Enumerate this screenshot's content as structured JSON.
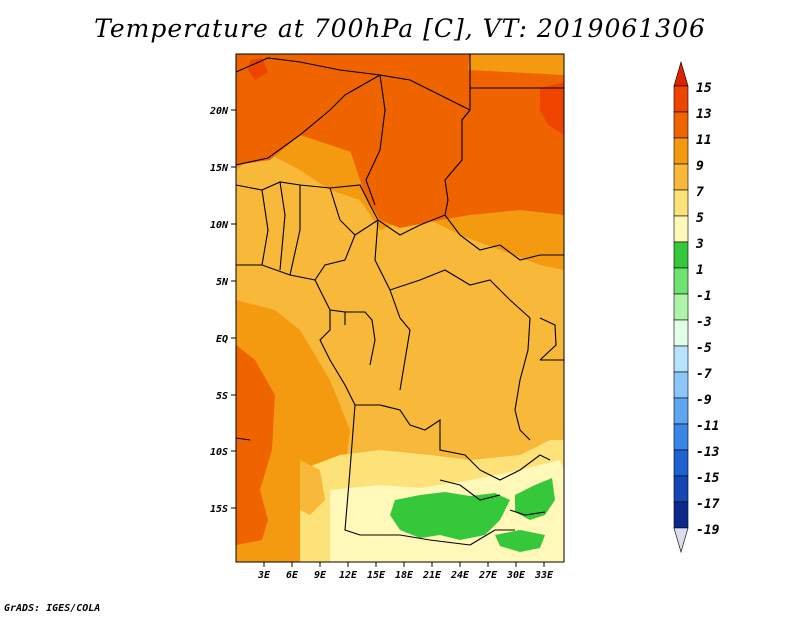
{
  "title": "Temperature at 700hPa [C], VT: 2019061306",
  "credit": "GrADS: IGES/COLA",
  "map": {
    "lat_labels": [
      "20N",
      "15N",
      "10N",
      "5N",
      "EQ",
      "5S",
      "10S",
      "15S"
    ],
    "lon_labels": [
      "3E",
      "6E",
      "9E",
      "12E",
      "15E",
      "18E",
      "21E",
      "24E",
      "27E",
      "30E",
      "33E"
    ]
  },
  "colorbar": {
    "labels": [
      "15",
      "13",
      "11",
      "9",
      "7",
      "5",
      "3",
      "1",
      "-1",
      "-3",
      "-5",
      "-7",
      "-9",
      "-11",
      "-13",
      "-15",
      "-17",
      "-19"
    ],
    "colors": [
      "#dd2200",
      "#ee4400",
      "#f06400",
      "#f49a10",
      "#f8b83a",
      "#fde27a",
      "#fff8b8",
      "#35c83a",
      "#6fe36f",
      "#aef3aa",
      "#e2ffe8",
      "#b6e4ff",
      "#8cc6fa",
      "#5ea6f0",
      "#3a86e6",
      "#1e62d2",
      "#1446b4",
      "#0b2a8c",
      "#ddddf0"
    ]
  }
}
